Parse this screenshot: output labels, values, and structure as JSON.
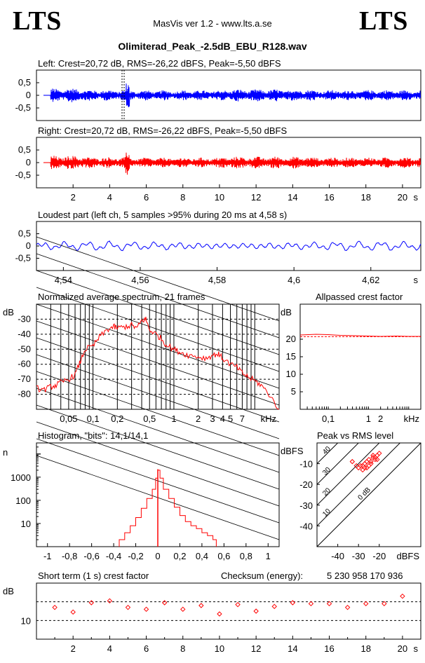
{
  "header": {
    "logo_left": "LTS",
    "logo_right": "LTS",
    "app_title": "MasVis ver 1.2 - www.lts.a.se",
    "file_name": "Olimiterad_Peak_-2.5dB_EBU_R128.wav"
  },
  "colors": {
    "left": "#0000ff",
    "right": "#ff0000",
    "grid": "#000000"
  },
  "chart_data": [
    {
      "id": "left",
      "type": "line",
      "title": "Left: Crest=20,72 dB, RMS=-26,22 dBFS, Peak=-5,50 dBFS",
      "yticks": [
        "0,5",
        "0",
        "-0,5"
      ],
      "ytick_values": [
        0.5,
        0,
        -0.5
      ],
      "ylim": [
        -1,
        1
      ],
      "xlim": [
        0,
        21
      ],
      "marker_x": 4.58,
      "envelope": {
        "segments": [
          [
            0.4,
            2.2,
            0.28
          ],
          [
            2.2,
            4.5,
            0.22
          ],
          [
            4.5,
            4.7,
            0.5
          ],
          [
            4.7,
            9.8,
            0.2
          ],
          [
            9.8,
            14.6,
            0.24
          ],
          [
            14.6,
            21.0,
            0.21
          ]
        ]
      }
    },
    {
      "id": "right",
      "type": "line",
      "title": "Right: Crest=20,72 dB, RMS=-26,22 dBFS, Peak=-5,50 dBFS",
      "yticks": [
        "0,5",
        "0",
        "-0,5"
      ],
      "ytick_values": [
        0.5,
        0,
        -0.5
      ],
      "ylim": [
        -1,
        1
      ],
      "xlim": [
        0,
        21
      ],
      "xticks": [
        "2",
        "4",
        "6",
        "8",
        "10",
        "12",
        "14",
        "16",
        "18",
        "20"
      ],
      "xtick_values": [
        2,
        4,
        6,
        8,
        10,
        12,
        14,
        16,
        18,
        20
      ],
      "xunit": "s"
    },
    {
      "id": "loudest",
      "type": "line",
      "title": "Loudest part (left  ch, 5 samples >95% during 20 ms at 4,58 s)",
      "yticks": [
        "0,5",
        "0",
        "-0,5"
      ],
      "ytick_values": [
        0.5,
        0,
        -0.5
      ],
      "ylim": [
        -1,
        1
      ],
      "xlim": [
        4.533,
        4.633
      ],
      "xticks": [
        "4,54",
        "4,56",
        "4,58",
        "4,6",
        "4,62"
      ],
      "xtick_values": [
        4.54,
        4.56,
        4.58,
        4.6,
        4.62
      ],
      "xunit": "s"
    },
    {
      "id": "spectrum",
      "type": "line",
      "title": "Normalized average spectrum, 21 frames",
      "ylabel": "dB",
      "xunit": "kHz",
      "yticks": [
        "-30",
        "-40",
        "-50",
        "-60",
        "-70",
        "-80"
      ],
      "ytick_values": [
        -30,
        -40,
        -50,
        -60,
        -70,
        -80
      ],
      "xticks": [
        "0,05",
        "0,1",
        "0,2",
        "0,5",
        "1",
        "2",
        "3",
        "4",
        "5",
        "7"
      ],
      "xtick_values": [
        0.05,
        0.1,
        0.2,
        0.5,
        1,
        2,
        3,
        4,
        5,
        7
      ],
      "xlim": [
        0.02,
        20
      ],
      "ylim": [
        -90,
        -20
      ],
      "x": [
        0.02,
        0.025,
        0.03,
        0.035,
        0.04,
        0.05,
        0.06,
        0.07,
        0.08,
        0.1,
        0.12,
        0.15,
        0.18,
        0.2,
        0.25,
        0.3,
        0.35,
        0.4,
        0.45,
        0.5,
        0.6,
        0.7,
        0.8,
        1.0,
        1.2,
        1.5,
        2.0,
        2.5,
        3.0,
        3.5,
        4.0,
        5.0,
        6.0,
        7.0,
        8.0,
        10.0,
        12.0,
        15.0,
        20.0
      ],
      "y": [
        -76,
        -77,
        -75,
        -74,
        -72,
        -70,
        -67,
        -58,
        -50,
        -48,
        -42,
        -37,
        -35,
        -36,
        -35,
        -34,
        -36,
        -31,
        -30,
        -37,
        -40,
        -43,
        -47,
        -50,
        -52,
        -54,
        -55,
        -56,
        -54,
        -53,
        -56,
        -60,
        -62,
        -66,
        -68,
        -71,
        -74,
        -80,
        -90
      ]
    },
    {
      "id": "allpass",
      "type": "line",
      "title": "Allpassed crest factor",
      "ylabel": "dB",
      "xunit": "kHz",
      "yticks": [
        "20",
        "15",
        "10",
        "5"
      ],
      "ytick_values": [
        20,
        15,
        10,
        5
      ],
      "ylim": [
        0,
        30
      ],
      "xticks": [
        "0,1",
        "1",
        "2"
      ],
      "xtick_values": [
        0.1,
        1,
        2
      ],
      "xlim": [
        0.02,
        20
      ],
      "reference_line": 20.72,
      "x": [
        0.02,
        0.05,
        0.1,
        0.2,
        0.5,
        1,
        2,
        5,
        10,
        20
      ],
      "y": [
        21.2,
        21.4,
        21.3,
        21.1,
        21.0,
        20.9,
        20.8,
        20.9,
        20.8,
        20.8
      ]
    },
    {
      "id": "histogram",
      "type": "bar",
      "title": "Histogram, \"bits\": 14,1/14,1",
      "ylabel": "n",
      "yticks": [
        "1000",
        "100",
        "10"
      ],
      "ytick_values": [
        1000,
        100,
        10
      ],
      "xticks": [
        "-1",
        "-0,8",
        "-0,6",
        "-0,4",
        "-0,2",
        "0",
        "0,2",
        "0,4",
        "0,6",
        "0,8",
        "1"
      ],
      "xtick_values": [
        -1,
        -0.8,
        -0.6,
        -0.4,
        -0.2,
        0,
        0.2,
        0.4,
        0.6,
        0.8,
        1
      ],
      "xlim": [
        -1.1,
        1.1
      ],
      "ylim": [
        1,
        30000
      ],
      "x": [
        -0.35,
        -0.3,
        -0.25,
        -0.2,
        -0.15,
        -0.1,
        -0.05,
        -0.02,
        0,
        0.02,
        0.05,
        0.1,
        0.15,
        0.2,
        0.25,
        0.3,
        0.35,
        0.4,
        0.45,
        0.5,
        0.53
      ],
      "y": [
        2,
        4,
        8,
        18,
        45,
        120,
        300,
        900,
        2000,
        900,
        300,
        120,
        50,
        22,
        12,
        8,
        6,
        4,
        3,
        2,
        1.5
      ]
    },
    {
      "id": "peak_vs_rms",
      "type": "scatter",
      "title": "Peak vs RMS level",
      "ylabel": "dBFS",
      "xunit": "dBFS",
      "yticks": [
        "-10",
        "-20",
        "-30",
        "-40"
      ],
      "ytick_values": [
        -10,
        -20,
        -30,
        -40
      ],
      "xticks": [
        "-40",
        "-30",
        "-20"
      ],
      "xtick_values": [
        -40,
        -30,
        -20
      ],
      "xlim": [
        -50,
        0
      ],
      "ylim": [
        -50,
        0
      ],
      "crest_lines": [
        "0 dB",
        "10",
        "20",
        "30",
        "40"
      ],
      "crest_values": [
        0,
        10,
        20,
        30,
        40
      ],
      "x": [
        -33,
        -31,
        -30,
        -29,
        -28,
        -27,
        -26,
        -25,
        -24,
        -23,
        -22,
        -21,
        -28,
        -26,
        -24,
        -22,
        -27,
        -25,
        -23,
        -21,
        -20
      ],
      "y": [
        -9,
        -11,
        -12,
        -11,
        -13,
        -10,
        -12,
        -8,
        -9,
        -7,
        -8,
        -6,
        -11,
        -9,
        -10,
        -7,
        -12,
        -11,
        -6,
        -8,
        -5
      ]
    },
    {
      "id": "short_term",
      "type": "scatter",
      "title": "Short term (1 s) crest factor",
      "ylabel": "dB",
      "checksum_label": "Checksum (energy):",
      "checksum_value": "5 230 958 170 936",
      "yticks": [
        "10"
      ],
      "ytick_values": [
        10
      ],
      "ylim": [
        0,
        30
      ],
      "dashed_lines": [
        10,
        20
      ],
      "xticks": [
        "2",
        "4",
        "6",
        "8",
        "10",
        "12",
        "14",
        "16",
        "18",
        "20"
      ],
      "xtick_values": [
        2,
        4,
        6,
        8,
        10,
        12,
        14,
        16,
        18,
        20
      ],
      "xlim": [
        0,
        21
      ],
      "xunit": "s",
      "x": [
        1,
        2,
        3,
        4,
        5,
        6,
        7,
        8,
        9,
        10,
        11,
        12,
        13,
        14,
        15,
        16,
        17,
        18,
        19,
        20
      ],
      "y": [
        17,
        14.5,
        19.5,
        20.5,
        17,
        16,
        19.5,
        16,
        18,
        13.5,
        18.5,
        15,
        17.5,
        19.5,
        19,
        19,
        17,
        19,
        19,
        23
      ]
    }
  ]
}
